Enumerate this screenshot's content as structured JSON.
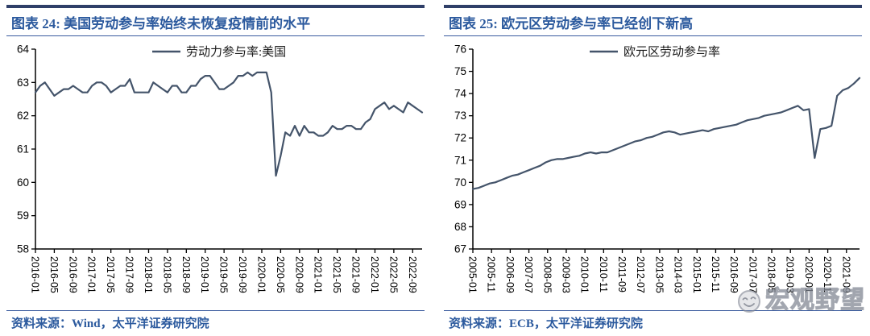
{
  "panels": [
    {
      "title": "图表 24: 美国劳动参与率始终未恢复疫情前的水平",
      "source": "资料来源：Wind，太平洋证券研究院"
    },
    {
      "title": "图表 25: 欧元区劳动参与率已经创下新高",
      "source": "资料来源：ECB，太平洋证券研究院"
    }
  ],
  "watermark": {
    "text": "宏观野望",
    "icon": "emoji-face"
  },
  "colors": {
    "line": "#44546A",
    "title_text": "#2c5a9e",
    "rule_thick": "#2f3f68",
    "rule_thin": "#3a5b9e",
    "axis": "#000000",
    "watermark_gray": "#8a8f98"
  },
  "chart_data": [
    {
      "type": "line",
      "title": "美国劳动参与率始终未恢复疫情前的水平",
      "legend": "劳动力参与率:美国",
      "line_color": "#44546A",
      "xlabel": "",
      "ylabel": "",
      "grid": false,
      "legend_position": "top-center",
      "ylim": [
        58,
        64
      ],
      "ytick_step": 1,
      "x_step_months": 1,
      "x_total_months": 82,
      "x_tick_months": [
        0,
        4,
        8,
        12,
        16,
        20,
        24,
        28,
        32,
        36,
        40,
        44,
        48,
        52,
        56,
        60,
        64,
        68,
        72,
        76,
        80
      ],
      "x_tick_labels": [
        "2016-01",
        "2016-05",
        "2016-09",
        "2017-01",
        "2017-05",
        "2017-09",
        "2018-01",
        "2018-05",
        "2018-09",
        "2019-01",
        "2019-05",
        "2019-09",
        "2020-01",
        "2020-05",
        "2020-09",
        "2021-01",
        "2021-05",
        "2021-09",
        "2022-01",
        "2022-05",
        "2022-09"
      ],
      "values": [
        62.7,
        62.9,
        63.0,
        62.8,
        62.6,
        62.7,
        62.8,
        62.8,
        62.9,
        62.8,
        62.7,
        62.7,
        62.9,
        63.0,
        63.0,
        62.9,
        62.7,
        62.8,
        62.9,
        62.9,
        63.1,
        62.7,
        62.7,
        62.7,
        62.7,
        63.0,
        62.9,
        62.8,
        62.7,
        62.9,
        62.9,
        62.7,
        62.7,
        62.9,
        62.9,
        63.1,
        63.2,
        63.2,
        63.0,
        62.8,
        62.8,
        62.9,
        63.0,
        63.2,
        63.2,
        63.3,
        63.2,
        63.3,
        63.3,
        63.3,
        62.7,
        60.2,
        60.8,
        61.5,
        61.4,
        61.7,
        61.4,
        61.7,
        61.5,
        61.5,
        61.4,
        61.4,
        61.5,
        61.7,
        61.6,
        61.6,
        61.7,
        61.7,
        61.6,
        61.6,
        61.8,
        61.9,
        62.2,
        62.3,
        62.4,
        62.2,
        62.3,
        62.2,
        62.1,
        62.4,
        62.3,
        62.2,
        62.1
      ]
    },
    {
      "type": "line",
      "title": "欧元区劳动参与率已经创下新高",
      "legend": "欧元区劳动参与率",
      "line_color": "#44546A",
      "xlabel": "",
      "ylabel": "",
      "grid": false,
      "legend_position": "top-center",
      "ylim": [
        67,
        76
      ],
      "ytick_step": 1,
      "x_step_months": 3,
      "x_total_months": 207,
      "x_tick_months": [
        0,
        10,
        20,
        30,
        40,
        50,
        60,
        70,
        80,
        90,
        100,
        110,
        120,
        130,
        140,
        150,
        160,
        170,
        180,
        190,
        200
      ],
      "x_tick_labels": [
        "2005-01",
        "2005-11",
        "2006-09",
        "2007-07",
        "2008-05",
        "2009-03",
        "2010-01",
        "2010-11",
        "2011-09",
        "2012-07",
        "2013-05",
        "2014-03",
        "2015-01",
        "2015-11",
        "2016-09",
        "2017-07",
        "2018-05",
        "2019-03",
        "2020-01",
        "2020-11",
        "2021-09"
      ],
      "values": [
        69.7,
        69.75,
        69.85,
        69.95,
        70.0,
        70.1,
        70.2,
        70.3,
        70.35,
        70.45,
        70.55,
        70.65,
        70.75,
        70.9,
        71.0,
        71.05,
        71.05,
        71.1,
        71.15,
        71.2,
        71.3,
        71.35,
        71.3,
        71.35,
        71.35,
        71.45,
        71.55,
        71.65,
        71.75,
        71.85,
        71.9,
        72.0,
        72.05,
        72.15,
        72.25,
        72.3,
        72.25,
        72.15,
        72.2,
        72.25,
        72.3,
        72.35,
        72.3,
        72.4,
        72.45,
        72.5,
        72.55,
        72.6,
        72.7,
        72.8,
        72.85,
        72.9,
        73.0,
        73.05,
        73.1,
        73.15,
        73.25,
        73.35,
        73.45,
        73.25,
        73.3,
        71.1,
        72.4,
        72.45,
        72.55,
        73.9,
        74.15,
        74.25,
        74.45,
        74.7
      ]
    }
  ]
}
